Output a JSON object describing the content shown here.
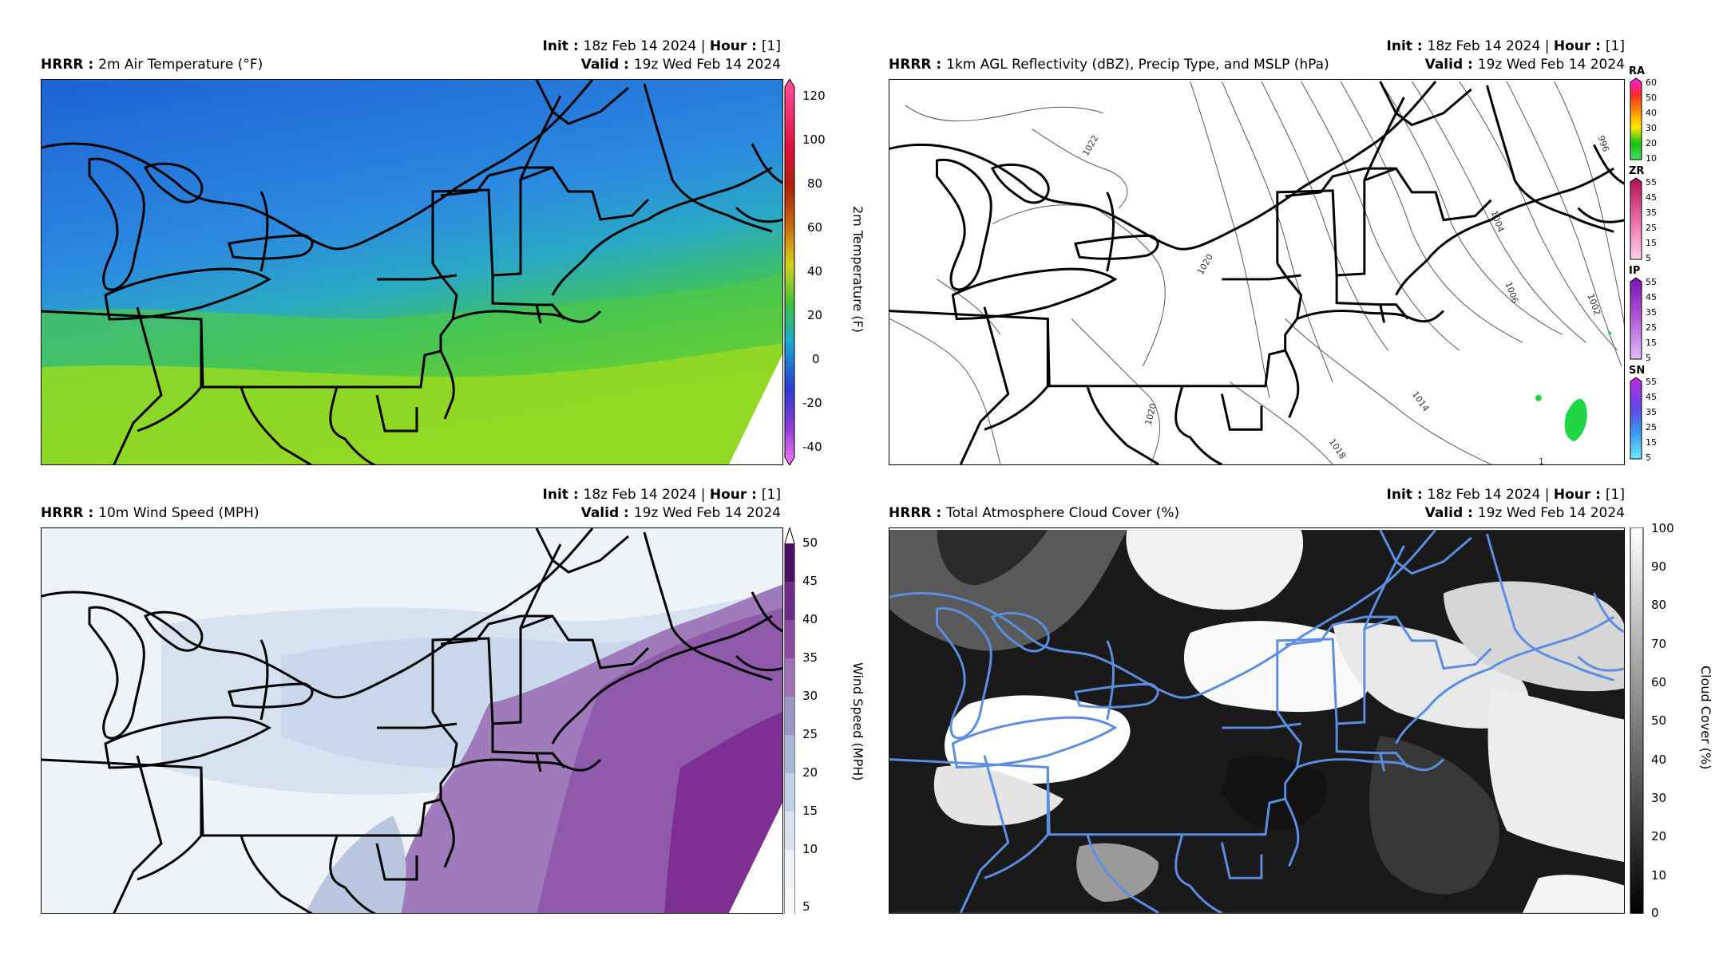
{
  "panels": [
    {
      "model": "HRRR",
      "title": "2m Air Temperature (°F)",
      "init_label": "Init",
      "init_value": "18z Feb 14 2024",
      "hour_label": "Hour",
      "hour_value": "[1]",
      "valid_label": "Valid",
      "valid_value": "19z Wed Feb 14 2024",
      "colorbar_label": "2m Temperature (F)",
      "colorbar_ticks": [
        "120",
        "100",
        "80",
        "60",
        "40",
        "20",
        "0",
        "-20",
        "-40"
      ]
    },
    {
      "model": "HRRR",
      "title": "1km AGL Reflectivity (dBZ), Precip Type, and MSLP (hPa)",
      "init_label": "Init",
      "init_value": "18z Feb 14 2024",
      "hour_label": "Hour",
      "hour_value": "[1]",
      "valid_label": "Valid",
      "valid_value": "19z Wed Feb 14 2024",
      "precip_bars": [
        {
          "name": "RA",
          "ticks": [
            "60",
            "50",
            "40",
            "30",
            "20",
            "10"
          ]
        },
        {
          "name": "ZR",
          "ticks": [
            "55",
            "45",
            "35",
            "25",
            "15",
            "5"
          ]
        },
        {
          "name": "IP",
          "ticks": [
            "55",
            "45",
            "35",
            "25",
            "15",
            "5"
          ]
        },
        {
          "name": "SN",
          "ticks": [
            "55",
            "45",
            "35",
            "25",
            "15",
            "5"
          ]
        }
      ],
      "isobar_labels": [
        "1022",
        "1020",
        "1020",
        "1004",
        "1006",
        "1002",
        "996",
        "1014",
        "1018",
        "1"
      ]
    },
    {
      "model": "HRRR",
      "title": "10m Wind Speed (MPH)",
      "init_label": "Init",
      "init_value": "18z Feb 14 2024",
      "hour_label": "Hour",
      "hour_value": "[1]",
      "valid_label": "Valid",
      "valid_value": "19z Wed Feb 14 2024",
      "colorbar_label": "Wind Speed (MPH)",
      "colorbar_ticks": [
        "50",
        "45",
        "40",
        "35",
        "30",
        "25",
        "20",
        "15",
        "10",
        "5"
      ]
    },
    {
      "model": "HRRR",
      "title": "Total Atmosphere Cloud Cover (%)",
      "init_label": "Init",
      "init_value": "18z Feb 14 2024",
      "hour_label": "Hour",
      "hour_value": "[1]",
      "valid_label": "Valid",
      "valid_value": "19z Wed Feb 14 2024",
      "colorbar_label": "Cloud Cover (%)",
      "colorbar_ticks": [
        "100",
        "90",
        "80",
        "70",
        "60",
        "50",
        "40",
        "30",
        "20",
        "10",
        "0"
      ]
    }
  ],
  "colors": {
    "border_lines": "#000000",
    "cloud_borders": "#5b8ee0"
  }
}
